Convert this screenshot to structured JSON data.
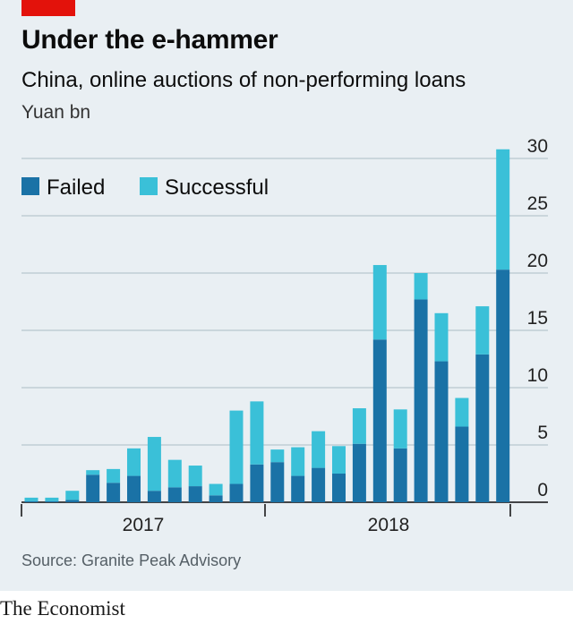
{
  "header": {
    "title": "Under the e-hammer",
    "subtitle": "China, online auctions of non-performing loans",
    "unit": "Yuan bn"
  },
  "footer": {
    "source": "Source: Granite Peak Advisory",
    "brand": "The Economist"
  },
  "colors": {
    "failed": "#1a72a6",
    "successful": "#3ac0d8",
    "brand_red": "#e3120b",
    "panel_bg": "#e9eff3"
  },
  "chart_data": {
    "type": "bar",
    "stacked": true,
    "ylabel": "Yuan bn",
    "ylim": [
      0,
      30
    ],
    "yticks": [
      0,
      5,
      10,
      15,
      20,
      25,
      30
    ],
    "y_axis_position": "right",
    "grid": true,
    "legend_position": "top-left",
    "x_group_labels": [
      "2017",
      "2018"
    ],
    "series": [
      {
        "name": "Failed",
        "values": [
          0.1,
          0.1,
          0.2,
          2.4,
          1.7,
          2.3,
          1.0,
          1.3,
          1.4,
          0.6,
          1.6,
          3.3,
          3.5,
          2.3,
          3.0,
          2.5,
          5.1,
          14.2,
          4.7,
          17.7,
          12.3,
          6.6,
          12.9,
          20.3
        ]
      },
      {
        "name": "Successful",
        "values": [
          0.3,
          0.3,
          0.8,
          0.4,
          1.2,
          2.4,
          4.7,
          2.4,
          1.8,
          1.0,
          6.4,
          5.5,
          1.1,
          2.5,
          3.2,
          2.4,
          3.1,
          6.5,
          3.4,
          2.3,
          4.2,
          2.5,
          4.2,
          10.5
        ]
      }
    ]
  }
}
